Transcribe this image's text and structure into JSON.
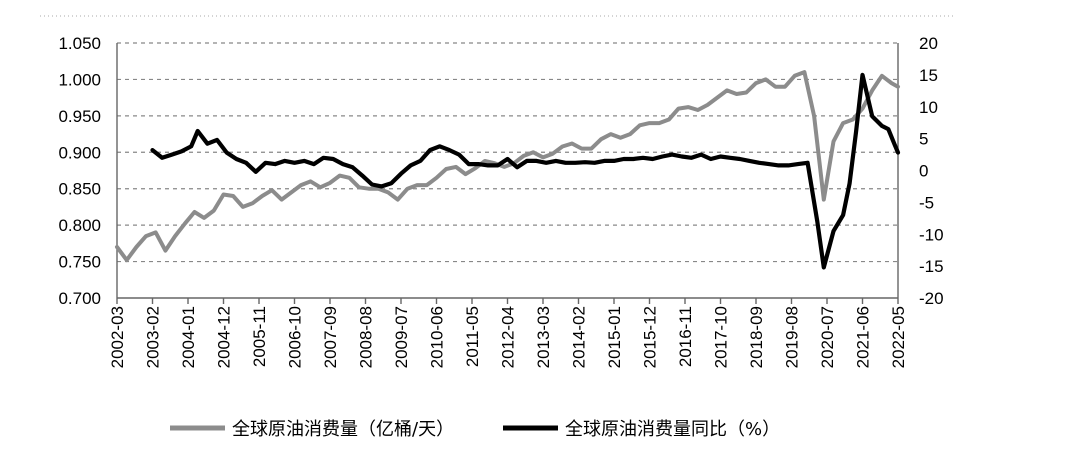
{
  "chart_data": {
    "type": "line",
    "title": "",
    "x_ticks": [
      "2002-03",
      "2003-02",
      "2004-01",
      "2004-12",
      "2005-11",
      "2006-10",
      "2007-09",
      "2008-08",
      "2009-07",
      "2010-06",
      "2011-05",
      "2012-04",
      "2013-03",
      "2014-02",
      "2015-01",
      "2015-12",
      "2016-11",
      "2017-10",
      "2018-09",
      "2019-08",
      "2020-07",
      "2021-06",
      "2022-05"
    ],
    "y_left": {
      "min": 0.7,
      "max": 1.05,
      "ticks": [
        "0.700",
        "0.750",
        "0.800",
        "0.850",
        "0.900",
        "0.950",
        "1.000",
        "1.050"
      ]
    },
    "y_right": {
      "min": -20,
      "max": 20,
      "ticks": [
        "-20",
        "-15",
        "-10",
        "-5",
        "0",
        "5",
        "10",
        "15",
        "20"
      ]
    },
    "grid": true,
    "legend_position": "bottom",
    "series": [
      {
        "name": "全球原油消费量（亿桶/天）",
        "axis": "left",
        "color": "#8c8c8c",
        "points": [
          [
            "2002-03",
            0.77
          ],
          [
            "2002-06",
            0.752
          ],
          [
            "2002-09",
            0.77
          ],
          [
            "2002-12",
            0.785
          ],
          [
            "2003-03",
            0.79
          ],
          [
            "2003-06",
            0.765
          ],
          [
            "2003-09",
            0.785
          ],
          [
            "2003-12",
            0.802
          ],
          [
            "2004-03",
            0.818
          ],
          [
            "2004-06",
            0.81
          ],
          [
            "2004-09",
            0.82
          ],
          [
            "2004-12",
            0.842
          ],
          [
            "2005-03",
            0.84
          ],
          [
            "2005-06",
            0.825
          ],
          [
            "2005-09",
            0.83
          ],
          [
            "2005-12",
            0.84
          ],
          [
            "2006-03",
            0.848
          ],
          [
            "2006-06",
            0.835
          ],
          [
            "2006-09",
            0.845
          ],
          [
            "2006-12",
            0.855
          ],
          [
            "2007-03",
            0.86
          ],
          [
            "2007-06",
            0.852
          ],
          [
            "2007-09",
            0.858
          ],
          [
            "2007-12",
            0.868
          ],
          [
            "2008-03",
            0.865
          ],
          [
            "2008-06",
            0.852
          ],
          [
            "2008-09",
            0.85
          ],
          [
            "2008-12",
            0.85
          ],
          [
            "2009-03",
            0.845
          ],
          [
            "2009-06",
            0.835
          ],
          [
            "2009-09",
            0.85
          ],
          [
            "2009-12",
            0.855
          ],
          [
            "2010-03",
            0.855
          ],
          [
            "2010-06",
            0.865
          ],
          [
            "2010-09",
            0.877
          ],
          [
            "2010-12",
            0.88
          ],
          [
            "2011-03",
            0.87
          ],
          [
            "2011-06",
            0.878
          ],
          [
            "2011-09",
            0.888
          ],
          [
            "2011-12",
            0.885
          ],
          [
            "2012-03",
            0.88
          ],
          [
            "2012-06",
            0.885
          ],
          [
            "2012-09",
            0.895
          ],
          [
            "2012-12",
            0.9
          ],
          [
            "2013-03",
            0.893
          ],
          [
            "2013-06",
            0.898
          ],
          [
            "2013-09",
            0.908
          ],
          [
            "2013-12",
            0.912
          ],
          [
            "2014-03",
            0.905
          ],
          [
            "2014-06",
            0.905
          ],
          [
            "2014-09",
            0.918
          ],
          [
            "2014-12",
            0.925
          ],
          [
            "2015-03",
            0.92
          ],
          [
            "2015-06",
            0.925
          ],
          [
            "2015-09",
            0.937
          ],
          [
            "2015-12",
            0.94
          ],
          [
            "2016-03",
            0.94
          ],
          [
            "2016-06",
            0.945
          ],
          [
            "2016-09",
            0.96
          ],
          [
            "2016-12",
            0.962
          ],
          [
            "2017-03",
            0.958
          ],
          [
            "2017-06",
            0.965
          ],
          [
            "2017-09",
            0.975
          ],
          [
            "2017-12",
            0.985
          ],
          [
            "2018-03",
            0.98
          ],
          [
            "2018-06",
            0.982
          ],
          [
            "2018-09",
            0.995
          ],
          [
            "2018-12",
            1.0
          ],
          [
            "2019-03",
            0.99
          ],
          [
            "2019-06",
            0.99
          ],
          [
            "2019-09",
            1.005
          ],
          [
            "2019-12",
            1.01
          ],
          [
            "2020-03",
            0.95
          ],
          [
            "2020-06",
            0.835
          ],
          [
            "2020-09",
            0.915
          ],
          [
            "2020-12",
            0.94
          ],
          [
            "2021-03",
            0.945
          ],
          [
            "2021-06",
            0.96
          ],
          [
            "2021-09",
            0.985
          ],
          [
            "2021-12",
            1.005
          ],
          [
            "2022-03",
            0.995
          ],
          [
            "2022-05",
            0.99
          ]
        ]
      },
      {
        "name": "全球原油消费量同比（%）",
        "axis": "right",
        "color": "#000000",
        "points": [
          [
            "2003-02",
            3.2
          ],
          [
            "2003-05",
            2.0
          ],
          [
            "2003-08",
            2.5
          ],
          [
            "2003-11",
            3.0
          ],
          [
            "2004-02",
            3.8
          ],
          [
            "2004-04",
            6.2
          ],
          [
            "2004-07",
            4.2
          ],
          [
            "2004-10",
            4.8
          ],
          [
            "2005-01",
            2.8
          ],
          [
            "2005-04",
            1.8
          ],
          [
            "2005-07",
            1.2
          ],
          [
            "2005-10",
            -0.2
          ],
          [
            "2006-01",
            1.2
          ],
          [
            "2006-04",
            1.0
          ],
          [
            "2006-07",
            1.5
          ],
          [
            "2006-10",
            1.2
          ],
          [
            "2007-01",
            1.5
          ],
          [
            "2007-04",
            1.0
          ],
          [
            "2007-07",
            2.0
          ],
          [
            "2007-10",
            1.8
          ],
          [
            "2008-01",
            1.0
          ],
          [
            "2008-04",
            0.5
          ],
          [
            "2008-07",
            -0.8
          ],
          [
            "2008-10",
            -2.2
          ],
          [
            "2009-01",
            -2.5
          ],
          [
            "2009-04",
            -2.0
          ],
          [
            "2009-07",
            -0.5
          ],
          [
            "2009-10",
            0.8
          ],
          [
            "2010-01",
            1.5
          ],
          [
            "2010-04",
            3.2
          ],
          [
            "2010-07",
            3.8
          ],
          [
            "2010-10",
            3.2
          ],
          [
            "2011-01",
            2.5
          ],
          [
            "2011-04",
            1.0
          ],
          [
            "2011-07",
            1.0
          ],
          [
            "2011-10",
            0.8
          ],
          [
            "2012-01",
            0.8
          ],
          [
            "2012-04",
            1.8
          ],
          [
            "2012-07",
            0.5
          ],
          [
            "2012-10",
            1.5
          ],
          [
            "2013-01",
            1.5
          ],
          [
            "2013-04",
            1.2
          ],
          [
            "2013-07",
            1.5
          ],
          [
            "2013-10",
            1.2
          ],
          [
            "2014-01",
            1.2
          ],
          [
            "2014-04",
            1.3
          ],
          [
            "2014-07",
            1.2
          ],
          [
            "2014-10",
            1.5
          ],
          [
            "2015-01",
            1.5
          ],
          [
            "2015-04",
            1.8
          ],
          [
            "2015-07",
            1.8
          ],
          [
            "2015-10",
            2.0
          ],
          [
            "2016-01",
            1.8
          ],
          [
            "2016-04",
            2.2
          ],
          [
            "2016-07",
            2.5
          ],
          [
            "2016-10",
            2.2
          ],
          [
            "2017-01",
            2.0
          ],
          [
            "2017-04",
            2.5
          ],
          [
            "2017-07",
            1.8
          ],
          [
            "2017-10",
            2.2
          ],
          [
            "2018-01",
            2.0
          ],
          [
            "2018-04",
            1.8
          ],
          [
            "2018-07",
            1.5
          ],
          [
            "2018-10",
            1.2
          ],
          [
            "2019-01",
            1.0
          ],
          [
            "2019-04",
            0.8
          ],
          [
            "2019-07",
            0.8
          ],
          [
            "2019-10",
            1.0
          ],
          [
            "2020-01",
            1.2
          ],
          [
            "2020-04",
            -8.0
          ],
          [
            "2020-06",
            -15.2
          ],
          [
            "2020-09",
            -9.5
          ],
          [
            "2020-12",
            -7.0
          ],
          [
            "2021-02",
            -2.0
          ],
          [
            "2021-04",
            6.0
          ],
          [
            "2021-06",
            15.0
          ],
          [
            "2021-09",
            8.5
          ],
          [
            "2021-12",
            7.0
          ],
          [
            "2022-02",
            6.5
          ],
          [
            "2022-04",
            4.0
          ],
          [
            "2022-05",
            2.8
          ]
        ]
      }
    ]
  }
}
